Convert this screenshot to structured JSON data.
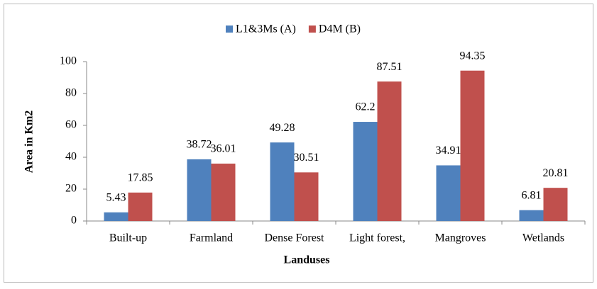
{
  "chart_data": {
    "type": "bar",
    "x_label": "Landuses",
    "y_label": "Area in Km2",
    "categories": [
      "Built-up",
      "Farmland",
      "Dense Forest",
      "Light forest,",
      "Mangroves",
      "Wetlands"
    ],
    "series": [
      {
        "name": "L1&3Ms (A)",
        "color": "#4f81bd",
        "values": [
          5.43,
          38.72,
          49.28,
          62.2,
          34.91,
          6.81
        ]
      },
      {
        "name": "D4M (B)",
        "color": "#c0504d",
        "values": [
          17.85,
          36.01,
          30.51,
          87.51,
          94.35,
          20.81
        ]
      }
    ],
    "ylim": [
      0,
      100
    ],
    "yticks": [
      0,
      20,
      40,
      60,
      80,
      100
    ],
    "legend": "top"
  }
}
